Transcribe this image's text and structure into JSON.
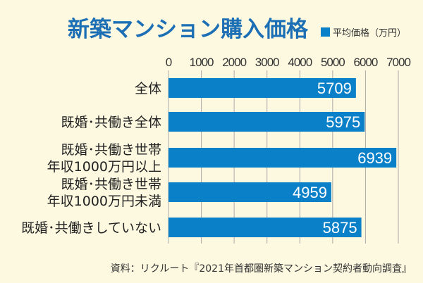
{
  "chart_data": {
    "type": "bar",
    "orientation": "horizontal",
    "title": "新築マンション購入価格",
    "legend": [
      "平均価格（万円）"
    ],
    "legend_position": "top-right",
    "categories": [
      [
        "全体"
      ],
      [
        "既婚･共働き全体"
      ],
      [
        "既婚･共働き世帯",
        "年収1000万円以上"
      ],
      [
        "既婚･共働き世帯",
        "年収1000万円未満"
      ],
      [
        "既婚･共働きしていない"
      ]
    ],
    "values": [
      5709,
      5975,
      6939,
      4959,
      5875
    ],
    "xlim": [
      0,
      7000
    ],
    "xticks": [
      0,
      1000,
      2000,
      3000,
      4000,
      5000,
      6000,
      7000
    ],
    "grid": true,
    "xlabel": "",
    "ylabel": ""
  },
  "colors": {
    "bar": "#0a80c8",
    "title": "#1c6fb5",
    "background": "#fdf9e0"
  },
  "source": "資料：リクルート『2021年首都圏新築マンション契約者動向調査』"
}
